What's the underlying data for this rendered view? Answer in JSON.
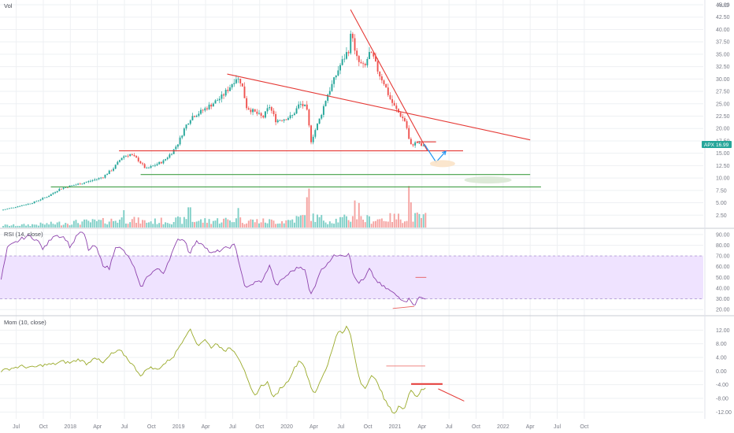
{
  "colors": {
    "up": "#26a69a",
    "down": "#ef5350",
    "vol_up": "#7fcfc7",
    "vol_down": "#f5a3a1",
    "grid": "#eef0f3",
    "separator": "#c9ccd3",
    "rsi_line": "#8e44ad",
    "rsi_band": "#efe3ff",
    "mom_line": "#9aaa2a",
    "trend_red": "#e53935",
    "trend_green": "#43a047",
    "arrow_blue": "#2196f3",
    "badge_green": "#26a69a"
  },
  "chart_data": [
    {
      "type": "candlestick",
      "pane": "price",
      "currency": "AUD",
      "ylim": [
        0,
        45
      ],
      "yticks": [
        "2.50",
        "5.00",
        "7.50",
        "10.00",
        "12.50",
        "15.00",
        "17.50",
        "20.00",
        "22.50",
        "25.00",
        "27.50",
        "30.00",
        "32.50",
        "35.00",
        "37.50",
        "40.00",
        "42.50",
        "45.00"
      ],
      "xlim": [
        2017.35,
        2023.85
      ],
      "x_labels": [
        "Jul",
        "Oct",
        "2018",
        "Apr",
        "Jul",
        "Oct",
        "2019",
        "Apr",
        "Jul",
        "Oct",
        "2020",
        "Apr",
        "Jul",
        "Oct",
        "2021",
        "Apr",
        "Jul",
        "Oct",
        "2022",
        "Apr",
        "Jul",
        "Oct"
      ],
      "x_label_values": [
        2017.5,
        2017.75,
        2018.0,
        2018.25,
        2018.5,
        2018.75,
        2019.0,
        2019.25,
        2019.5,
        2019.75,
        2020.0,
        2020.25,
        2020.5,
        2020.75,
        2021.0,
        2021.25,
        2021.5,
        2021.75,
        2022.0,
        2022.25,
        2022.5,
        2022.75
      ],
      "anchors_close": [
        [
          2017.36,
          3.5
        ],
        [
          2017.5,
          4.2
        ],
        [
          2017.65,
          5.0
        ],
        [
          2017.8,
          6.4
        ],
        [
          2017.9,
          7.8
        ],
        [
          2018.0,
          8.4
        ],
        [
          2018.1,
          8.9
        ],
        [
          2018.2,
          9.5
        ],
        [
          2018.3,
          10.2
        ],
        [
          2018.4,
          12.0
        ],
        [
          2018.48,
          14.3
        ],
        [
          2018.55,
          14.8
        ],
        [
          2018.62,
          13.8
        ],
        [
          2018.7,
          11.8
        ],
        [
          2018.78,
          12.6
        ],
        [
          2018.86,
          13.4
        ],
        [
          2018.94,
          15.2
        ],
        [
          2019.0,
          17.2
        ],
        [
          2019.06,
          20.3
        ],
        [
          2019.12,
          22.4
        ],
        [
          2019.2,
          23.3
        ],
        [
          2019.3,
          24.8
        ],
        [
          2019.4,
          26.4
        ],
        [
          2019.48,
          28.6
        ],
        [
          2019.53,
          30.3
        ],
        [
          2019.58,
          29.4
        ],
        [
          2019.63,
          24.3
        ],
        [
          2019.7,
          23.3
        ],
        [
          2019.78,
          22.2
        ],
        [
          2019.84,
          24.5
        ],
        [
          2019.9,
          21.6
        ],
        [
          2019.98,
          22.0
        ],
        [
          2020.05,
          22.5
        ],
        [
          2020.12,
          25.0
        ],
        [
          2020.18,
          24.2
        ],
        [
          2020.2,
          21.8
        ],
        [
          2020.22,
          17.2
        ],
        [
          2020.26,
          19.5
        ],
        [
          2020.31,
          22.3
        ],
        [
          2020.37,
          26.5
        ],
        [
          2020.43,
          29.4
        ],
        [
          2020.49,
          32.6
        ],
        [
          2020.55,
          35.1
        ],
        [
          2020.58,
          36.2
        ],
        [
          2020.6,
          40.6
        ],
        [
          2020.63,
          35.2
        ],
        [
          2020.66,
          33.5
        ],
        [
          2020.72,
          32.2
        ],
        [
          2020.76,
          35.2
        ],
        [
          2020.8,
          34.3
        ],
        [
          2020.85,
          31.2
        ],
        [
          2020.9,
          29.2
        ],
        [
          2020.95,
          26.2
        ],
        [
          2021.0,
          24.2
        ],
        [
          2021.06,
          22.4
        ],
        [
          2021.1,
          21.3
        ],
        [
          2021.14,
          16.5
        ],
        [
          2021.2,
          17.2
        ],
        [
          2021.26,
          16.3
        ],
        [
          2021.3,
          16.3
        ]
      ],
      "volume_anchors": [
        [
          2017.5,
          0.6
        ],
        [
          2017.8,
          1.0
        ],
        [
          2018.0,
          1.4
        ],
        [
          2018.3,
          1.7
        ],
        [
          2018.5,
          2.3
        ],
        [
          2018.7,
          1.6
        ],
        [
          2019.0,
          2.0
        ],
        [
          2019.2,
          1.8
        ],
        [
          2019.5,
          2.1
        ],
        [
          2019.8,
          1.7
        ],
        [
          2020.0,
          1.8
        ],
        [
          2020.2,
          3.2
        ],
        [
          2020.4,
          1.9
        ],
        [
          2020.6,
          2.6
        ],
        [
          2020.8,
          2.2
        ],
        [
          2021.0,
          2.7
        ],
        [
          2021.3,
          2.9
        ]
      ],
      "volume_spikes": [
        [
          2020.18,
          8.4
        ],
        [
          2020.21,
          10.8
        ],
        [
          2020.63,
          7.5
        ],
        [
          2020.67,
          6.8
        ],
        [
          2021.13,
          11.5
        ],
        [
          2021.15,
          7.0
        ],
        [
          2019.55,
          5.4
        ],
        [
          2019.1,
          5.6
        ],
        [
          2018.5,
          4.8
        ]
      ],
      "last_price": "16.99",
      "ticker_badge": "APX",
      "annotations": [
        {
          "kind": "trendline",
          "color": "red",
          "from": [
            2019.45,
            31.0
          ],
          "to": [
            2022.25,
            17.7
          ]
        },
        {
          "kind": "trendline",
          "color": "red",
          "from": [
            2020.59,
            44.0
          ],
          "to": [
            2021.3,
            15.5
          ]
        },
        {
          "kind": "hline",
          "color": "red",
          "from": [
            2018.45,
            15.5
          ],
          "to": [
            2021.63,
            15.5
          ]
        },
        {
          "kind": "hline",
          "color": "red",
          "from": [
            2021.2,
            17.3
          ],
          "to": [
            2021.38,
            17.3
          ]
        },
        {
          "kind": "hline",
          "color": "green",
          "from": [
            2018.65,
            10.7
          ],
          "to": [
            2022.25,
            10.7
          ]
        },
        {
          "kind": "hline",
          "color": "green",
          "from": [
            2017.82,
            8.2
          ],
          "to": [
            2022.35,
            8.2
          ]
        },
        {
          "kind": "arrow",
          "color": "blue",
          "points": [
            [
              2021.27,
              16.9
            ],
            [
              2021.38,
              13.2
            ],
            [
              2021.47,
              15.4
            ]
          ]
        },
        {
          "kind": "zone",
          "color": "orange",
          "center": [
            2021.44,
            12.9
          ]
        },
        {
          "kind": "zone",
          "color": "grey-green",
          "center": [
            2021.86,
            9.6
          ]
        }
      ]
    },
    {
      "type": "line",
      "pane": "rsi",
      "title": "RSI (14, close)",
      "ylim": [
        15,
        95
      ],
      "yticks": [
        "20.00",
        "30.00",
        "40.00",
        "50.00",
        "60.00",
        "70.00",
        "80.00",
        "90.00"
      ],
      "band": [
        30,
        70
      ],
      "anchors": [
        [
          2017.36,
          48
        ],
        [
          2017.42,
          78
        ],
        [
          2017.55,
          86
        ],
        [
          2017.62,
          89
        ],
        [
          2017.7,
          84
        ],
        [
          2017.75,
          76
        ],
        [
          2017.85,
          90
        ],
        [
          2017.95,
          87
        ],
        [
          2018.0,
          78
        ],
        [
          2018.08,
          92
        ],
        [
          2018.13,
          90
        ],
        [
          2018.17,
          75
        ],
        [
          2018.23,
          80
        ],
        [
          2018.3,
          62
        ],
        [
          2018.36,
          58
        ],
        [
          2018.42,
          80
        ],
        [
          2018.5,
          74
        ],
        [
          2018.58,
          62
        ],
        [
          2018.65,
          40
        ],
        [
          2018.72,
          52
        ],
        [
          2018.8,
          58
        ],
        [
          2018.86,
          54
        ],
        [
          2018.94,
          73
        ],
        [
          2019.0,
          86
        ],
        [
          2019.06,
          85
        ],
        [
          2019.1,
          72
        ],
        [
          2019.16,
          83
        ],
        [
          2019.22,
          82
        ],
        [
          2019.3,
          72
        ],
        [
          2019.38,
          75
        ],
        [
          2019.46,
          78
        ],
        [
          2019.52,
          80
        ],
        [
          2019.55,
          68
        ],
        [
          2019.62,
          39
        ],
        [
          2019.7,
          45
        ],
        [
          2019.78,
          47
        ],
        [
          2019.84,
          62
        ],
        [
          2019.9,
          42
        ],
        [
          2019.98,
          50
        ],
        [
          2020.05,
          56
        ],
        [
          2020.12,
          60
        ],
        [
          2020.17,
          58
        ],
        [
          2020.2,
          41
        ],
        [
          2020.22,
          33
        ],
        [
          2020.26,
          42
        ],
        [
          2020.3,
          54
        ],
        [
          2020.38,
          64
        ],
        [
          2020.44,
          70
        ],
        [
          2020.5,
          72
        ],
        [
          2020.55,
          70
        ],
        [
          2020.58,
          75
        ],
        [
          2020.61,
          53
        ],
        [
          2020.66,
          45
        ],
        [
          2020.72,
          48
        ],
        [
          2020.76,
          58
        ],
        [
          2020.82,
          48
        ],
        [
          2020.88,
          42
        ],
        [
          2020.95,
          38
        ],
        [
          2021.0,
          34
        ],
        [
          2021.06,
          30
        ],
        [
          2021.1,
          28
        ],
        [
          2021.14,
          30
        ],
        [
          2021.18,
          24
        ],
        [
          2021.23,
          32
        ],
        [
          2021.27,
          30
        ],
        [
          2021.3,
          32
        ]
      ],
      "annotations": [
        {
          "kind": "line",
          "color": "red",
          "from": [
            2021.19,
            50
          ],
          "to": [
            2021.29,
            50
          ]
        },
        {
          "kind": "line",
          "color": "red",
          "from": [
            2020.98,
            21
          ],
          "to": [
            2021.18,
            23
          ]
        }
      ]
    },
    {
      "type": "line",
      "pane": "momentum",
      "title": "Mom (10, close)",
      "ylim": [
        -14,
        16
      ],
      "yticks": [
        "-12.00",
        "-8.00",
        "-4.00",
        "0.00",
        "4.00",
        "8.00",
        "12.00"
      ],
      "anchors": [
        [
          2017.36,
          0
        ],
        [
          2017.45,
          0.8
        ],
        [
          2017.55,
          1.4
        ],
        [
          2017.65,
          1.0
        ],
        [
          2017.75,
          1.8
        ],
        [
          2017.85,
          2.0
        ],
        [
          2017.92,
          2.8
        ],
        [
          2018.0,
          2.4
        ],
        [
          2018.08,
          3.5
        ],
        [
          2018.16,
          2.0
        ],
        [
          2018.22,
          4.3
        ],
        [
          2018.3,
          2.2
        ],
        [
          2018.38,
          5.0
        ],
        [
          2018.46,
          6.0
        ],
        [
          2018.52,
          4.0
        ],
        [
          2018.6,
          0.8
        ],
        [
          2018.66,
          -1.5
        ],
        [
          2018.72,
          1.2
        ],
        [
          2018.8,
          0.4
        ],
        [
          2018.88,
          2.4
        ],
        [
          2018.96,
          4.5
        ],
        [
          2019.02,
          8.0
        ],
        [
          2019.06,
          10.2
        ],
        [
          2019.1,
          12.5
        ],
        [
          2019.14,
          10.0
        ],
        [
          2019.18,
          7.5
        ],
        [
          2019.24,
          9.3
        ],
        [
          2019.3,
          7.0
        ],
        [
          2019.36,
          8.2
        ],
        [
          2019.42,
          5.5
        ],
        [
          2019.47,
          7.2
        ],
        [
          2019.52,
          5.8
        ],
        [
          2019.58,
          2.5
        ],
        [
          2019.64,
          -3.0
        ],
        [
          2019.7,
          -7.5
        ],
        [
          2019.76,
          -4.5
        ],
        [
          2019.82,
          -3.2
        ],
        [
          2019.88,
          -8.0
        ],
        [
          2019.94,
          -5.0
        ],
        [
          2020.0,
          -3.5
        ],
        [
          2020.06,
          0.2
        ],
        [
          2020.12,
          3.4
        ],
        [
          2020.17,
          1.0
        ],
        [
          2020.22,
          -4.8
        ],
        [
          2020.26,
          -6.8
        ],
        [
          2020.3,
          -3.5
        ],
        [
          2020.36,
          0.5
        ],
        [
          2020.42,
          6.0
        ],
        [
          2020.47,
          12.0
        ],
        [
          2020.52,
          10.8
        ],
        [
          2020.56,
          13.5
        ],
        [
          2020.6,
          9.0
        ],
        [
          2020.64,
          2.0
        ],
        [
          2020.68,
          -3.0
        ],
        [
          2020.72,
          -5.0
        ],
        [
          2020.78,
          -1.5
        ],
        [
          2020.84,
          -3.2
        ],
        [
          2020.9,
          -8.2
        ],
        [
          2020.95,
          -10.8
        ],
        [
          2021.0,
          -12.5
        ],
        [
          2021.04,
          -10.0
        ],
        [
          2021.08,
          -11.8
        ],
        [
          2021.14,
          -5.2
        ],
        [
          2021.2,
          -7.5
        ],
        [
          2021.25,
          -5.5
        ],
        [
          2021.3,
          -5.0
        ]
      ],
      "annotations": [
        {
          "kind": "line",
          "color": "red",
          "from": [
            2020.92,
            1.5
          ],
          "to": [
            2021.28,
            1.5
          ]
        },
        {
          "kind": "line",
          "color": "red",
          "from": [
            2021.15,
            -3.8
          ],
          "to": [
            2021.44,
            -3.8
          ]
        },
        {
          "kind": "line",
          "color": "red",
          "from": [
            2021.4,
            -5.2
          ],
          "to": [
            2021.64,
            -8.8
          ]
        }
      ]
    }
  ],
  "header": {
    "vol_label": "Vol",
    "rsi_label": "RSI (14, close)",
    "mom_label": "Mom (10, close)",
    "currency_label": "AUD"
  }
}
